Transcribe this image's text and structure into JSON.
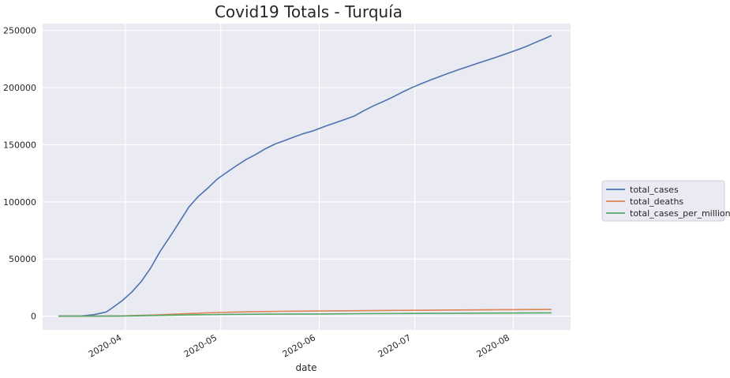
{
  "chart_data": {
    "type": "line",
    "title": "Covid19  Totals - Turquía",
    "xlabel": "date",
    "ylabel": "",
    "xlim": [
      "2020-03-06",
      "2020-08-19"
    ],
    "ylim": [
      -12000,
      256000
    ],
    "x_ticks": [
      "2020-04-01",
      "2020-05-01",
      "2020-06-01",
      "2020-07-01",
      "2020-08-01"
    ],
    "x_tick_labels": [
      "2020-04",
      "2020-05",
      "2020-06",
      "2020-07",
      "2020-08"
    ],
    "y_ticks": [
      0,
      50000,
      100000,
      150000,
      200000,
      250000
    ],
    "y_tick_labels": [
      "0",
      "50000",
      "100000",
      "150000",
      "200000",
      "250000"
    ],
    "grid": true,
    "legend_position": "right-outside",
    "series": [
      {
        "name": "total_cases",
        "color": "#4c72b0",
        "points": [
          [
            "2020-03-11",
            1
          ],
          [
            "2020-03-18",
            191
          ],
          [
            "2020-03-22",
            1236
          ],
          [
            "2020-03-26",
            3629
          ],
          [
            "2020-03-28",
            7402
          ],
          [
            "2020-03-31",
            13531
          ],
          [
            "2020-04-03",
            20921
          ],
          [
            "2020-04-06",
            30217
          ],
          [
            "2020-04-09",
            42282
          ],
          [
            "2020-04-12",
            56956
          ],
          [
            "2020-04-15",
            69392
          ],
          [
            "2020-04-18",
            82329
          ],
          [
            "2020-04-21",
            95591
          ],
          [
            "2020-04-24",
            104912
          ],
          [
            "2020-04-27",
            112261
          ],
          [
            "2020-04-30",
            120204
          ],
          [
            "2020-05-03",
            126045
          ],
          [
            "2020-05-06",
            131744
          ],
          [
            "2020-05-09",
            137115
          ],
          [
            "2020-05-12",
            141475
          ],
          [
            "2020-05-15",
            146457
          ],
          [
            "2020-05-18",
            150593
          ],
          [
            "2020-05-21",
            153548
          ],
          [
            "2020-05-24",
            156827
          ],
          [
            "2020-05-27",
            159797
          ],
          [
            "2020-05-30",
            162120
          ],
          [
            "2020-06-03",
            166422
          ],
          [
            "2020-06-06",
            169218
          ],
          [
            "2020-06-09",
            172114
          ],
          [
            "2020-06-12",
            175218
          ],
          [
            "2020-06-15",
            179831
          ],
          [
            "2020-06-18",
            184031
          ],
          [
            "2020-06-21",
            187685
          ],
          [
            "2020-06-24",
            191657
          ],
          [
            "2020-06-27",
            195883
          ],
          [
            "2020-06-30",
            199906
          ],
          [
            "2020-07-03",
            203456
          ],
          [
            "2020-07-06",
            206844
          ],
          [
            "2020-07-09",
            209962
          ],
          [
            "2020-07-12",
            212993
          ],
          [
            "2020-07-15",
            215940
          ],
          [
            "2020-07-18",
            218717
          ],
          [
            "2020-07-21",
            221500
          ],
          [
            "2020-07-24",
            224252
          ],
          [
            "2020-07-27",
            227019
          ],
          [
            "2020-07-30",
            229891
          ],
          [
            "2020-08-02",
            232856
          ],
          [
            "2020-08-05",
            235978
          ],
          [
            "2020-08-08",
            239622
          ],
          [
            "2020-08-11",
            243180
          ],
          [
            "2020-08-13",
            245635
          ]
        ]
      },
      {
        "name": "total_deaths",
        "color": "#dd8452",
        "points": [
          [
            "2020-03-11",
            0
          ],
          [
            "2020-03-21",
            21
          ],
          [
            "2020-03-31",
            214
          ],
          [
            "2020-04-10",
            1006
          ],
          [
            "2020-04-20",
            2140
          ],
          [
            "2020-04-30",
            3174
          ],
          [
            "2020-05-10",
            3786
          ],
          [
            "2020-05-20",
            4222
          ],
          [
            "2020-05-31",
            4540
          ],
          [
            "2020-06-10",
            4746
          ],
          [
            "2020-06-20",
            4974
          ],
          [
            "2020-06-30",
            5131
          ],
          [
            "2020-07-10",
            5323
          ],
          [
            "2020-07-20",
            5491
          ],
          [
            "2020-07-31",
            5674
          ],
          [
            "2020-08-13",
            5891
          ]
        ]
      },
      {
        "name": "total_cases_per_million",
        "color": "#55a868",
        "points": [
          [
            "2020-03-11",
            0
          ],
          [
            "2020-03-25",
            27
          ],
          [
            "2020-03-31",
            160
          ],
          [
            "2020-04-10",
            560
          ],
          [
            "2020-04-20",
            1070
          ],
          [
            "2020-04-30",
            1425
          ],
          [
            "2020-05-15",
            1736
          ],
          [
            "2020-05-31",
            1918
          ],
          [
            "2020-06-15",
            2132
          ],
          [
            "2020-06-30",
            2370
          ],
          [
            "2020-07-15",
            2560
          ],
          [
            "2020-07-31",
            2730
          ],
          [
            "2020-08-13",
            2912
          ]
        ]
      }
    ]
  }
}
